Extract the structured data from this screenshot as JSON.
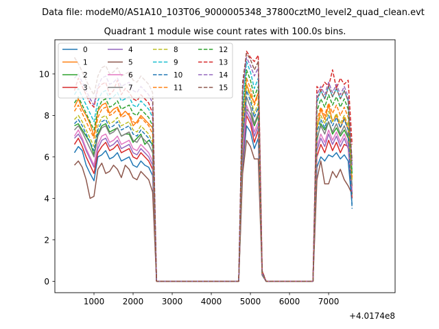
{
  "chart_data": {
    "type": "line",
    "suptitle": "Data file: modeM0/AS1A10_103T06_9000005348_37800cztM0_level2_quad_clean.evt",
    "title": "Quadrant 1 module wise count rates with 100.0s bins.",
    "xlabel": "",
    "ylabel": "",
    "x_offset_label": "+4.0174e8",
    "xlim": [
      0,
      8700
    ],
    "ylim": [
      -0.55,
      11.65
    ],
    "xticks": [
      1000,
      2000,
      3000,
      4000,
      5000,
      6000,
      7000
    ],
    "xtick_labels": [
      "1000",
      "2000",
      "3000",
      "4000",
      "5000",
      "6000",
      "7000"
    ],
    "yticks": [
      0,
      2,
      4,
      6,
      8,
      10
    ],
    "ytick_labels": [
      "0",
      "2",
      "4",
      "6",
      "8",
      "10"
    ],
    "grid": false,
    "legend_position": "upper-left",
    "legend_columns": 4,
    "x": [
      500,
      600,
      700,
      800,
      900,
      1000,
      1100,
      1200,
      1300,
      1400,
      1500,
      1600,
      1700,
      1800,
      1900,
      2000,
      2100,
      2200,
      2300,
      2400,
      2500,
      2600,
      4700,
      4800,
      4900,
      5000,
      5100,
      5200,
      5300,
      5400,
      6600,
      6700,
      6800,
      6900,
      7000,
      7100,
      7200,
      7300,
      7400,
      7500,
      7600
    ],
    "series": [
      {
        "name": "0",
        "color": "#1f77b4",
        "dash": "solid",
        "values": [
          6.2,
          6.5,
          6.3,
          5.6,
          5.2,
          4.85,
          6.0,
          6.1,
          6.3,
          5.9,
          6.0,
          6.2,
          5.8,
          5.9,
          6.0,
          5.6,
          5.5,
          5.8,
          5.6,
          5.5,
          5.1,
          0,
          0,
          5.6,
          7.5,
          7.2,
          6.4,
          6.9,
          0.3,
          0,
          0,
          5.5,
          6.0,
          5.8,
          6.1,
          6.0,
          6.2,
          5.9,
          6.1,
          5.8,
          3.7
        ]
      },
      {
        "name": "1",
        "color": "#ff7f0e",
        "dash": "solid",
        "values": [
          8.4,
          8.8,
          8.3,
          8.0,
          7.6,
          7.0,
          8.2,
          8.5,
          8.6,
          8.1,
          8.3,
          8.4,
          8.0,
          8.2,
          8.0,
          7.5,
          7.7,
          8.0,
          7.8,
          7.6,
          7.4,
          0,
          0,
          7.0,
          9.5,
          9.0,
          8.6,
          9.1,
          0.4,
          0,
          0,
          7.4,
          8.3,
          7.8,
          8.5,
          7.7,
          8.0,
          7.4,
          7.9,
          7.3,
          4.5
        ]
      },
      {
        "name": "2",
        "color": "#2ca02c",
        "dash": "solid",
        "values": [
          7.5,
          7.6,
          7.3,
          7.0,
          6.7,
          6.1,
          7.1,
          7.5,
          7.6,
          7.2,
          7.3,
          7.4,
          7.0,
          7.1,
          7.1,
          6.7,
          6.9,
          7.1,
          6.6,
          6.8,
          6.6,
          0,
          0,
          6.4,
          8.3,
          8.1,
          7.5,
          8.0,
          0.3,
          0,
          0,
          6.8,
          7.6,
          7.3,
          7.7,
          7.1,
          7.4,
          7.0,
          7.3,
          6.9,
          4.2
        ]
      },
      {
        "name": "3",
        "color": "#d62728",
        "dash": "solid",
        "values": [
          6.6,
          6.9,
          6.5,
          6.0,
          5.6,
          5.2,
          6.2,
          6.5,
          6.7,
          6.3,
          6.4,
          6.6,
          6.2,
          6.3,
          6.4,
          6.0,
          5.9,
          6.2,
          6.0,
          5.8,
          5.4,
          0,
          0,
          5.8,
          8.0,
          7.6,
          6.7,
          7.3,
          0.3,
          0,
          0,
          6.0,
          6.6,
          6.2,
          6.8,
          6.3,
          6.7,
          6.2,
          6.6,
          6.5,
          4.0
        ]
      },
      {
        "name": "4",
        "color": "#9467bd",
        "dash": "solid",
        "values": [
          6.9,
          7.1,
          6.8,
          6.3,
          5.9,
          5.5,
          6.4,
          6.8,
          6.9,
          6.5,
          6.6,
          6.8,
          6.4,
          6.5,
          6.6,
          6.2,
          6.1,
          6.4,
          6.2,
          6.0,
          5.6,
          0,
          0,
          6.0,
          8.2,
          7.8,
          7.0,
          7.5,
          0.3,
          0,
          0,
          6.3,
          6.9,
          6.5,
          7.1,
          6.6,
          7.0,
          6.5,
          6.9,
          6.4,
          4.3
        ]
      },
      {
        "name": "5",
        "color": "#8c564b",
        "dash": "solid",
        "values": [
          5.6,
          5.8,
          5.5,
          4.9,
          4.0,
          4.1,
          5.4,
          5.7,
          5.2,
          5.3,
          5.6,
          5.4,
          5.0,
          5.6,
          5.4,
          5.0,
          4.9,
          5.3,
          5.1,
          4.9,
          4.3,
          0,
          0,
          5.2,
          6.8,
          6.5,
          5.9,
          5.9,
          0.3,
          0,
          0,
          4.9,
          5.8,
          4.7,
          4.7,
          5.3,
          5.0,
          5.4,
          4.9,
          4.6,
          4.2
        ]
      },
      {
        "name": "6",
        "color": "#e377c2",
        "dash": "solid",
        "values": [
          7.0,
          7.3,
          6.9,
          6.4,
          6.0,
          5.6,
          6.6,
          7.0,
          7.1,
          6.7,
          6.8,
          7.0,
          6.6,
          6.7,
          6.8,
          6.4,
          6.3,
          6.6,
          6.4,
          6.2,
          5.8,
          0,
          0,
          6.3,
          8.5,
          8.0,
          7.2,
          7.7,
          0.3,
          0,
          0,
          6.5,
          7.1,
          6.7,
          7.3,
          6.8,
          7.2,
          6.7,
          7.1,
          6.6,
          4.4
        ]
      },
      {
        "name": "7",
        "color": "#7f7f7f",
        "dash": "solid",
        "values": [
          7.3,
          7.5,
          7.2,
          6.8,
          6.4,
          6.0,
          7.0,
          7.4,
          7.5,
          7.1,
          7.2,
          7.4,
          7.0,
          7.1,
          7.2,
          6.8,
          6.7,
          7.0,
          6.8,
          6.6,
          6.2,
          0,
          0,
          6.7,
          8.9,
          8.4,
          7.6,
          8.1,
          0.3,
          0,
          0,
          6.9,
          7.5,
          7.1,
          7.7,
          7.2,
          7.6,
          7.1,
          7.5,
          7.0,
          4.6
        ]
      },
      {
        "name": "8",
        "color": "#bcbd22",
        "dash": "dashed",
        "values": [
          7.8,
          8.0,
          7.7,
          7.3,
          6.9,
          6.5,
          7.5,
          7.9,
          8.0,
          7.6,
          7.7,
          7.9,
          7.5,
          7.6,
          7.7,
          7.3,
          7.2,
          7.5,
          7.3,
          7.1,
          6.7,
          0,
          0,
          7.2,
          9.4,
          8.9,
          8.1,
          8.6,
          0.4,
          0,
          0,
          7.4,
          8.0,
          7.6,
          8.2,
          7.7,
          8.1,
          7.6,
          8.0,
          7.5,
          4.9
        ]
      },
      {
        "name": "9",
        "color": "#17becf",
        "dash": "dashed",
        "values": [
          9.0,
          9.3,
          8.9,
          8.5,
          8.1,
          7.7,
          8.7,
          9.1,
          9.2,
          8.8,
          8.9,
          9.1,
          8.7,
          8.8,
          8.9,
          8.5,
          8.4,
          8.7,
          8.5,
          8.3,
          7.9,
          0,
          0,
          8.4,
          10.6,
          10.1,
          9.3,
          9.8,
          0.4,
          0,
          0,
          8.6,
          9.2,
          8.8,
          9.4,
          8.9,
          9.3,
          8.8,
          9.2,
          8.7,
          5.3
        ]
      },
      {
        "name": "10",
        "color": "#1f77b4",
        "dash": "dashed",
        "values": [
          7.6,
          7.8,
          7.5,
          7.1,
          6.7,
          6.3,
          7.3,
          7.7,
          7.8,
          7.4,
          7.5,
          7.7,
          7.3,
          7.4,
          7.5,
          7.1,
          7.0,
          7.3,
          7.1,
          6.9,
          6.5,
          0,
          0,
          7.0,
          9.2,
          8.7,
          7.9,
          8.4,
          0.4,
          0,
          0,
          7.2,
          7.8,
          7.4,
          8.0,
          7.5,
          7.9,
          7.4,
          7.8,
          7.3,
          3.5
        ]
      },
      {
        "name": "11",
        "color": "#ff7f0e",
        "dash": "dashed",
        "values": [
          8.2,
          8.5,
          8.1,
          7.7,
          7.3,
          6.9,
          7.9,
          8.3,
          8.4,
          8.0,
          8.1,
          8.3,
          7.9,
          8.0,
          8.1,
          7.7,
          7.6,
          7.9,
          7.7,
          7.5,
          7.1,
          0,
          0,
          7.6,
          9.8,
          9.3,
          8.5,
          9.0,
          0.4,
          0,
          0,
          7.8,
          8.4,
          8.0,
          8.6,
          8.1,
          8.5,
          8.0,
          8.4,
          7.9,
          5.0
        ]
      },
      {
        "name": "12",
        "color": "#2ca02c",
        "dash": "dashed",
        "values": [
          8.6,
          8.9,
          8.5,
          8.1,
          7.7,
          7.3,
          8.3,
          8.7,
          8.8,
          8.4,
          8.5,
          8.7,
          8.3,
          8.4,
          8.5,
          8.1,
          8.0,
          8.3,
          8.1,
          7.9,
          7.5,
          0,
          0,
          8.0,
          10.2,
          9.7,
          8.9,
          9.4,
          0.4,
          0,
          0,
          8.2,
          8.8,
          8.4,
          9.0,
          8.5,
          8.9,
          8.4,
          8.8,
          8.3,
          5.2
        ]
      },
      {
        "name": "13",
        "color": "#d62728",
        "dash": "dashed",
        "values": [
          9.2,
          9.8,
          9.4,
          9.0,
          8.6,
          8.4,
          9.3,
          9.5,
          9.6,
          9.0,
          9.2,
          9.7,
          9.0,
          9.3,
          9.1,
          8.8,
          8.7,
          9.0,
          8.8,
          8.6,
          8.1,
          0,
          0,
          9.2,
          11.1,
          10.8,
          10.6,
          10.9,
          0.5,
          0,
          0,
          9.4,
          9.2,
          9.6,
          9.4,
          10.2,
          9.3,
          9.8,
          9.5,
          9.7,
          6.6
        ]
      },
      {
        "name": "14",
        "color": "#9467bd",
        "dash": "dashed",
        "values": [
          9.8,
          10.0,
          9.6,
          9.2,
          8.8,
          8.5,
          9.4,
          9.8,
          9.9,
          9.5,
          9.6,
          9.8,
          9.4,
          9.5,
          9.6,
          9.2,
          9.1,
          9.4,
          9.2,
          9.0,
          8.6,
          0,
          0,
          9.1,
          10.8,
          10.4,
          9.9,
          10.3,
          0.4,
          0,
          0,
          9.0,
          9.4,
          9.0,
          9.6,
          9.1,
          9.5,
          9.0,
          9.4,
          8.9,
          5.6
        ]
      },
      {
        "name": "15",
        "color": "#8c564b",
        "dash": "dashed",
        "values": [
          10.8,
          10.5,
          10.1,
          9.7,
          9.3,
          9.0,
          9.9,
          10.3,
          10.4,
          10.0,
          10.1,
          10.3,
          9.9,
          10.0,
          10.1,
          9.7,
          9.6,
          9.9,
          9.7,
          9.5,
          9.1,
          0,
          0,
          9.6,
          11.0,
          10.7,
          10.2,
          10.6,
          0.5,
          0,
          0,
          8.8,
          9.2,
          8.8,
          9.4,
          8.9,
          9.3,
          8.8,
          9.2,
          8.7,
          5.8
        ]
      }
    ]
  }
}
